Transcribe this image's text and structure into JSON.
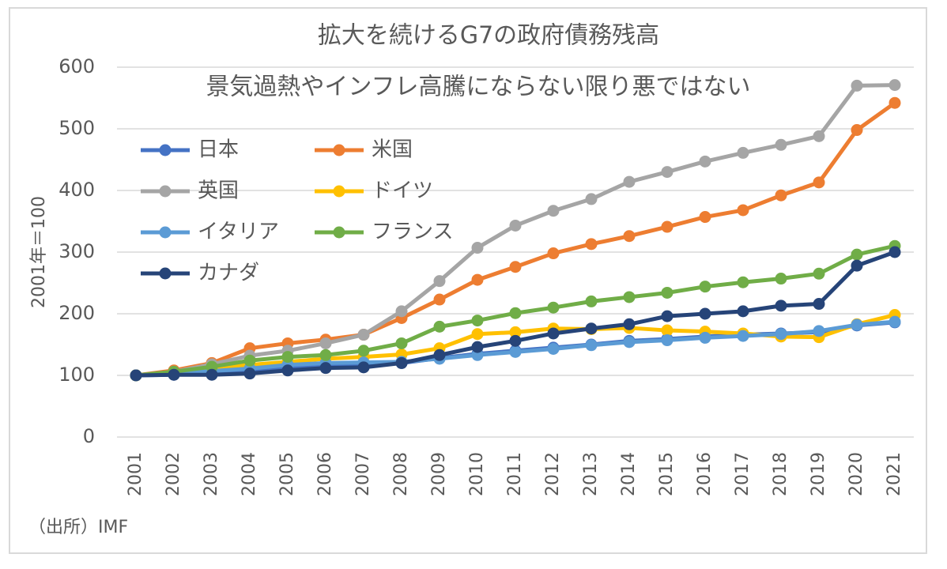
{
  "chart_data": {
    "type": "line",
    "title": "拡大を続けるG7の政府債務残高",
    "subtitle": "景気過熱やインフレ高騰にならない限り悪ではない",
    "y_label": "2001年＝100",
    "source": "（出所）IMF",
    "categories": [
      "2001",
      "2002",
      "2003",
      "2004",
      "2005",
      "2006",
      "2007",
      "2008",
      "2009",
      "2010",
      "2011",
      "2012",
      "2013",
      "2014",
      "2015",
      "2016",
      "2017",
      "2018",
      "2019",
      "2020",
      "2021"
    ],
    "ylim": [
      0,
      600
    ],
    "yticks": [
      0,
      100,
      200,
      300,
      400,
      500,
      600
    ],
    "grid": true,
    "series": [
      {
        "name": "日本",
        "color": "#4472c4",
        "values": [
          100,
          101,
          104,
          107,
          112,
          116,
          118,
          120,
          128,
          135,
          140,
          145,
          150,
          156,
          159,
          163,
          166,
          168,
          170,
          181,
          186
        ]
      },
      {
        "name": "米国",
        "color": "#ed7d31",
        "values": [
          100,
          108,
          120,
          144,
          152,
          158,
          166,
          193,
          223,
          255,
          276,
          298,
          313,
          326,
          341,
          357,
          368,
          392,
          413,
          498,
          542
        ]
      },
      {
        "name": "英国",
        "color": "#a5a5a5",
        "values": [
          100,
          106,
          118,
          132,
          140,
          152,
          166,
          204,
          253,
          307,
          343,
          367,
          386,
          414,
          430,
          447,
          461,
          474,
          488,
          570,
          571
        ]
      },
      {
        "name": "ドイツ",
        "color": "#ffc000",
        "values": [
          100,
          104,
          112,
          117,
          122,
          127,
          130,
          134,
          144,
          167,
          170,
          176,
          175,
          177,
          173,
          171,
          168,
          163,
          162,
          183,
          198
        ]
      },
      {
        "name": "イタリア",
        "color": "#5b9bd5",
        "values": [
          100,
          103,
          107,
          111,
          117,
          120,
          121,
          122,
          127,
          133,
          138,
          143,
          149,
          154,
          157,
          161,
          164,
          167,
          172,
          182,
          187
        ]
      },
      {
        "name": "フランス",
        "color": "#70ad47",
        "values": [
          100,
          106,
          114,
          124,
          130,
          133,
          140,
          152,
          179,
          189,
          201,
          210,
          220,
          227,
          234,
          244,
          251,
          257,
          265,
          296,
          310
        ]
      },
      {
        "name": "カナダ",
        "color": "#264478",
        "values": [
          100,
          101,
          101,
          103,
          108,
          112,
          113,
          120,
          133,
          146,
          156,
          168,
          176,
          183,
          196,
          200,
          204,
          213,
          216,
          278,
          300
        ]
      }
    ]
  }
}
